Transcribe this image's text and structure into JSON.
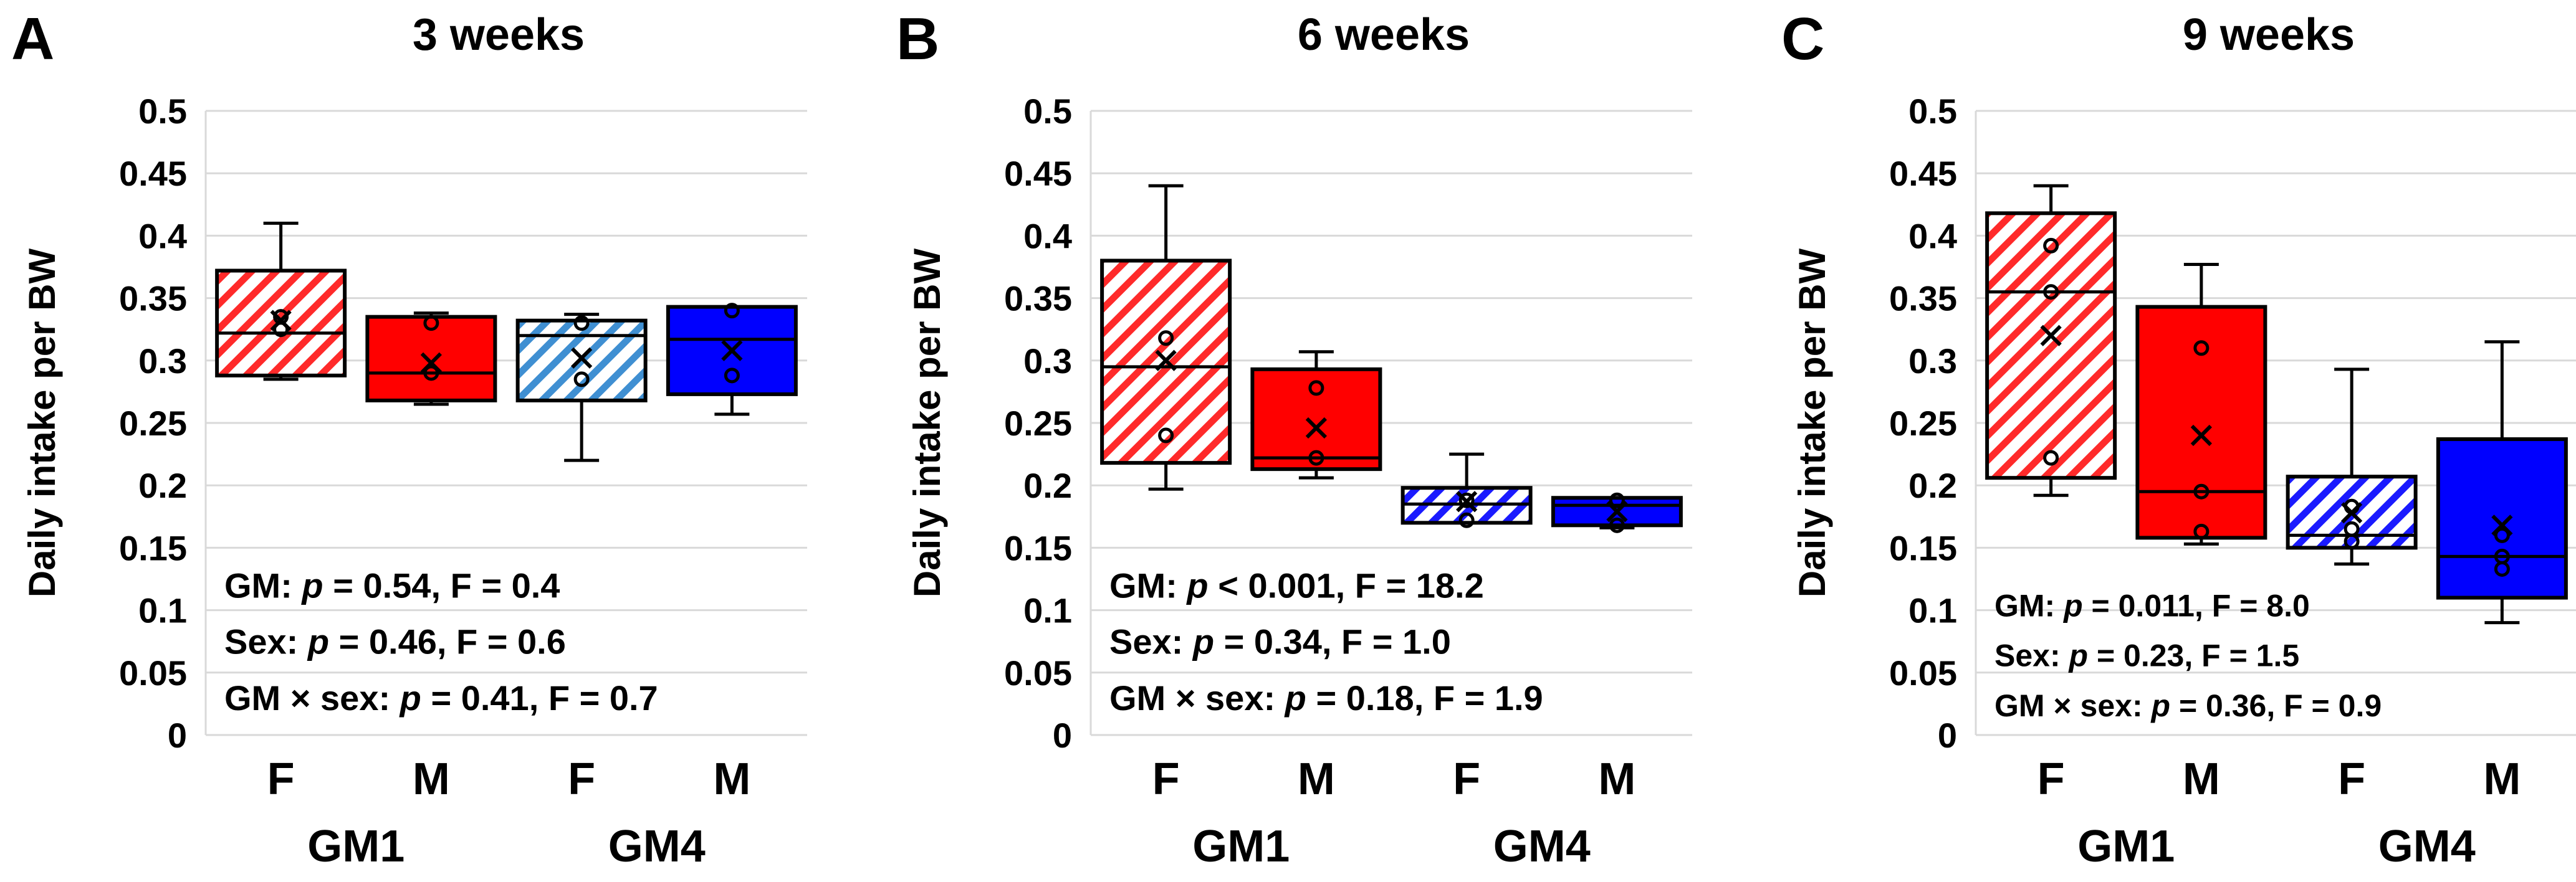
{
  "chart_data": [
    {
      "type": "box",
      "panel_label": "A",
      "title": "3 weeks",
      "ylabel": "Daily intake per BW",
      "ylim": [
        0,
        0.5
      ],
      "yticks": [
        0,
        0.05,
        0.1,
        0.15,
        0.2,
        0.25,
        0.3,
        0.35,
        0.4,
        0.45,
        0.5
      ],
      "ytick_labels": [
        "0",
        "0.05",
        "0.1",
        "0.15",
        "0.2",
        "0.25",
        "0.3",
        "0.35",
        "0.4",
        "0.45",
        "0.5"
      ],
      "categories": [
        "F",
        "M",
        "F",
        "M"
      ],
      "groups": [
        "GM1",
        "GM4"
      ],
      "boxes": [
        {
          "category": "F",
          "group": "GM1",
          "style": "red-hatched",
          "min": 0.285,
          "q1": 0.288,
          "median": 0.322,
          "q3": 0.372,
          "max": 0.41,
          "mean": 0.332,
          "points": [
            0.335,
            0.325
          ]
        },
        {
          "category": "M",
          "group": "GM1",
          "style": "red-solid",
          "min": 0.265,
          "q1": 0.268,
          "median": 0.29,
          "q3": 0.335,
          "max": 0.338,
          "mean": 0.298,
          "points": [
            0.33,
            0.29
          ]
        },
        {
          "category": "F",
          "group": "GM4",
          "style": "lightblue-hatched",
          "min": 0.22,
          "q1": 0.268,
          "median": 0.32,
          "q3": 0.332,
          "max": 0.337,
          "mean": 0.302,
          "points": [
            0.33,
            0.285
          ]
        },
        {
          "category": "M",
          "group": "GM4",
          "style": "blue-solid",
          "min": 0.257,
          "q1": 0.273,
          "median": 0.317,
          "q3": 0.343,
          "max": 0.343,
          "mean": 0.308,
          "points": [
            0.34,
            0.288
          ]
        }
      ],
      "stats": [
        {
          "prefix": "GM: ",
          "p_part": "p",
          "suffix": " = 0.54, F = 0.4"
        },
        {
          "prefix": "Sex: ",
          "p_part": "p",
          "suffix": " = 0.46, F = 0.6"
        },
        {
          "prefix": "GM × sex: ",
          "p_part": "p",
          "suffix": " = 0.41, F = 0.7"
        }
      ]
    },
    {
      "type": "box",
      "panel_label": "B",
      "title": "6 weeks",
      "ylabel": "Daily intake per BW",
      "ylim": [
        0,
        0.5
      ],
      "yticks": [
        0,
        0.05,
        0.1,
        0.15,
        0.2,
        0.25,
        0.3,
        0.35,
        0.4,
        0.45,
        0.5
      ],
      "ytick_labels": [
        "0",
        "0.05",
        "0.1",
        "0.15",
        "0.2",
        "0.25",
        "0.3",
        "0.35",
        "0.4",
        "0.45",
        "0.5"
      ],
      "categories": [
        "F",
        "M",
        "F",
        "M"
      ],
      "groups": [
        "GM1",
        "GM4"
      ],
      "boxes": [
        {
          "category": "F",
          "group": "GM1",
          "style": "red-hatched",
          "min": 0.197,
          "q1": 0.218,
          "median": 0.295,
          "q3": 0.38,
          "max": 0.44,
          "mean": 0.3,
          "points": [
            0.318,
            0.24
          ]
        },
        {
          "category": "M",
          "group": "GM1",
          "style": "red-solid",
          "min": 0.206,
          "q1": 0.213,
          "median": 0.222,
          "q3": 0.293,
          "max": 0.307,
          "mean": 0.246,
          "points": [
            0.278,
            0.222
          ]
        },
        {
          "category": "F",
          "group": "GM4",
          "style": "blue-hatched",
          "min": 0.17,
          "q1": 0.17,
          "median": 0.185,
          "q3": 0.198,
          "max": 0.225,
          "mean": 0.187,
          "points": [
            0.188,
            0.172
          ]
        },
        {
          "category": "M",
          "group": "GM4",
          "style": "blue-solid",
          "min": 0.166,
          "q1": 0.168,
          "median": 0.184,
          "q3": 0.19,
          "max": 0.19,
          "mean": 0.179,
          "points": [
            0.188,
            0.168
          ]
        }
      ],
      "stats": [
        {
          "prefix": "GM: ",
          "p_part": "p",
          "suffix": " < 0.001, F = 18.2"
        },
        {
          "prefix": "Sex: ",
          "p_part": "p",
          "suffix": " = 0.34, F = 1.0"
        },
        {
          "prefix": "GM × sex: ",
          "p_part": "p",
          "suffix": " = 0.18, F = 1.9"
        }
      ]
    },
    {
      "type": "box",
      "panel_label": "C",
      "title": "9 weeks",
      "ylabel": "Daily intake per BW",
      "ylim": [
        0,
        0.5
      ],
      "yticks": [
        0,
        0.05,
        0.1,
        0.15,
        0.2,
        0.25,
        0.3,
        0.35,
        0.4,
        0.45,
        0.5
      ],
      "ytick_labels": [
        "0",
        "0.05",
        "0.1",
        "0.15",
        "0.2",
        "0.25",
        "0.3",
        "0.35",
        "0.4",
        "0.45",
        "0.5"
      ],
      "categories": [
        "F",
        "M",
        "F",
        "M"
      ],
      "groups": [
        "GM1",
        "GM4"
      ],
      "boxes": [
        {
          "category": "F",
          "group": "GM1",
          "style": "red-hatched",
          "min": 0.192,
          "q1": 0.206,
          "median": 0.355,
          "q3": 0.418,
          "max": 0.44,
          "mean": 0.32,
          "points": [
            0.392,
            0.355,
            0.222
          ]
        },
        {
          "category": "M",
          "group": "GM1",
          "style": "red-solid",
          "min": 0.153,
          "q1": 0.158,
          "median": 0.195,
          "q3": 0.343,
          "max": 0.377,
          "mean": 0.24,
          "points": [
            0.31,
            0.195,
            0.163
          ]
        },
        {
          "category": "F",
          "group": "GM4",
          "style": "blue-hatched",
          "min": 0.137,
          "q1": 0.15,
          "median": 0.16,
          "q3": 0.207,
          "max": 0.293,
          "mean": 0.178,
          "points": [
            0.183,
            0.165,
            0.155
          ]
        },
        {
          "category": "M",
          "group": "GM4",
          "style": "blue-solid",
          "min": 0.09,
          "q1": 0.11,
          "median": 0.143,
          "q3": 0.237,
          "max": 0.315,
          "mean": 0.168,
          "points": [
            0.16,
            0.143,
            0.133
          ]
        }
      ],
      "stats": [
        {
          "prefix": "GM: ",
          "p_part": "p",
          "suffix": " = 0.011, F = 8.0"
        },
        {
          "prefix": "Sex: ",
          "p_part": "p",
          "suffix": " = 0.23, F = 1.5"
        },
        {
          "prefix": "GM × sex: ",
          "p_part": "p",
          "suffix": " = 0.36, F = 0.9"
        }
      ]
    }
  ],
  "colors": {
    "red": "#ff0000",
    "red_hatch_line": "#ff2a2a",
    "blue": "#0000ff",
    "blue_hatch_line": "#1a1aff",
    "lightblue_hatch_line": "#3f8fd2",
    "grid": "#d9d9d9",
    "outline": "#000000",
    "background": "#ffffff"
  }
}
